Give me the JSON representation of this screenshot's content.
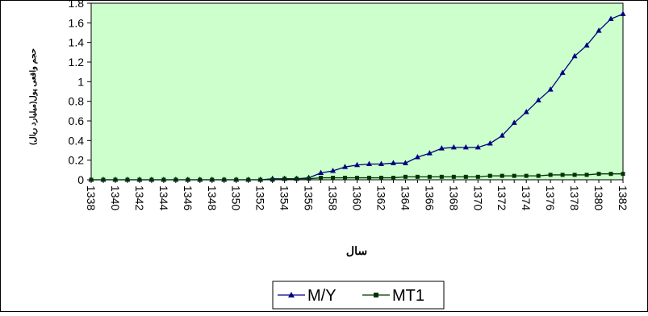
{
  "chart_data": {
    "type": "line",
    "xlabel": "سال",
    "ylabel": "حجم واقعی پول(میلیارد ریال)",
    "ylim": [
      0,
      1.8
    ],
    "yticks": [
      "0",
      "0.2",
      "0.4",
      "0.6",
      "0.8",
      "1",
      "1.2",
      "1.4",
      "1.6",
      "1.8"
    ],
    "xlim": [
      1338,
      1382
    ],
    "xticks": [
      "1338",
      "1340",
      "1342",
      "1344",
      "1346",
      "1348",
      "1350",
      "1352",
      "1354",
      "1356",
      "1358",
      "1360",
      "1362",
      "1364",
      "1366",
      "1368",
      "1370",
      "1372",
      "1374",
      "1376",
      "1378",
      "1380",
      "1382"
    ],
    "grid": false,
    "plot_background": "#ccffcc",
    "legend_position": "bottom",
    "x": [
      1338,
      1339,
      1340,
      1341,
      1342,
      1343,
      1344,
      1345,
      1346,
      1347,
      1348,
      1349,
      1350,
      1351,
      1352,
      1353,
      1354,
      1355,
      1356,
      1357,
      1358,
      1359,
      1360,
      1361,
      1362,
      1363,
      1364,
      1365,
      1366,
      1367,
      1368,
      1369,
      1370,
      1371,
      1372,
      1373,
      1374,
      1375,
      1376,
      1377,
      1378,
      1379,
      1380,
      1381,
      1382
    ],
    "series": [
      {
        "name": "M/Y",
        "color": "#000080",
        "marker": "triangle",
        "values": [
          0.0,
          0.0,
          0.0,
          0.0,
          0.0,
          0.0,
          0.0,
          0.0,
          0.0,
          0.0,
          0.0,
          0.0,
          0.0,
          0.0,
          0.0,
          0.01,
          0.01,
          0.01,
          0.02,
          0.07,
          0.09,
          0.13,
          0.15,
          0.16,
          0.16,
          0.17,
          0.17,
          0.23,
          0.27,
          0.32,
          0.33,
          0.33,
          0.33,
          0.37,
          0.45,
          0.58,
          0.69,
          0.81,
          0.92,
          1.09,
          1.26,
          1.37,
          1.52,
          1.64,
          1.69
        ]
      },
      {
        "name": "MT1",
        "color": "#003300",
        "marker": "square",
        "values": [
          0.0,
          0.0,
          0.0,
          0.0,
          0.0,
          0.0,
          0.0,
          0.0,
          0.0,
          0.0,
          0.0,
          0.0,
          0.0,
          0.0,
          0.0,
          0.0,
          0.01,
          0.01,
          0.01,
          0.02,
          0.02,
          0.02,
          0.02,
          0.02,
          0.02,
          0.02,
          0.03,
          0.03,
          0.03,
          0.03,
          0.03,
          0.03,
          0.03,
          0.04,
          0.04,
          0.04,
          0.04,
          0.04,
          0.05,
          0.05,
          0.05,
          0.05,
          0.06,
          0.06,
          0.06
        ]
      }
    ]
  }
}
